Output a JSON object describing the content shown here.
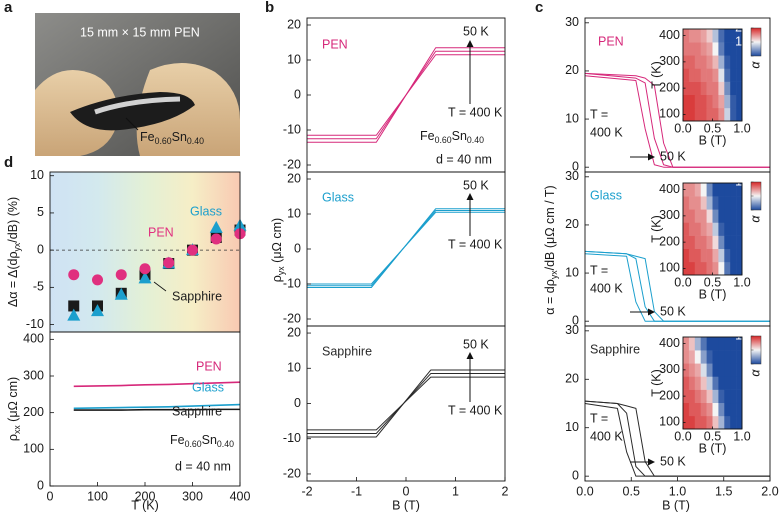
{
  "photo": {
    "label": "a",
    "caption": "15 mm × 15 mm PEN",
    "sample": [
      "Fe",
      "0.60",
      "Sn",
      "0.40"
    ]
  },
  "chart_data": [
    {
      "type": "scatter",
      "panel": "d",
      "ylabel": [
        "Δα = Δ(dρ",
        "yx",
        "/dB) (%)"
      ],
      "xlim": [
        0,
        400
      ],
      "ylim": [
        -11,
        10.5
      ],
      "yticks": [
        -10,
        -5,
        0,
        5,
        10
      ],
      "background": [
        "#cfe2f4",
        "#d3e9ee",
        "#e3f0d6",
        "#f6eec6",
        "#f8c9b2"
      ],
      "x": [
        50,
        100,
        150,
        200,
        250,
        300,
        350,
        400
      ],
      "series": [
        {
          "name": "Sapphire",
          "color": "#1a1a1a",
          "marker": "square",
          "values": [
            -7.5,
            -7.5,
            -5.8,
            -3.3,
            -1.8,
            0,
            1.7,
            2.7
          ]
        },
        {
          "name": "Glass",
          "color": "#1b9fcd",
          "marker": "triangle",
          "values": [
            -8.8,
            -8.2,
            -6,
            -3.8,
            -1.8,
            0,
            3,
            3.3
          ]
        },
        {
          "name": "PEN",
          "color": "#e0307f",
          "marker": "circle",
          "values": [
            -3.3,
            -4,
            -3.3,
            -2.5,
            -1.7,
            0,
            1.5,
            2.2
          ]
        }
      ]
    },
    {
      "type": "line",
      "xlim": [
        0,
        400
      ],
      "xticks": [
        0,
        100,
        200,
        300,
        400
      ],
      "xlabel": "T (K)",
      "ylim": [
        0,
        420
      ],
      "yticks": [
        0,
        100,
        200,
        300,
        400
      ],
      "ylabel": [
        "ρ",
        "xx",
        " (μΩ cm)"
      ],
      "x": [
        50,
        100,
        150,
        200,
        250,
        300,
        350,
        400
      ],
      "series": [
        {
          "name": "PEN",
          "color": "#d6287a",
          "values": [
            272,
            273,
            274,
            276,
            277,
            279,
            281,
            283
          ]
        },
        {
          "name": "Glass",
          "color": "#1b9fcd",
          "values": [
            212,
            213,
            214,
            215,
            216,
            218,
            220,
            222
          ]
        },
        {
          "name": "Sapphire",
          "color": "#1a1a1a",
          "values": [
            207,
            207,
            207,
            208,
            208,
            208,
            209,
            209
          ]
        }
      ],
      "sample": [
        "Fe",
        "0.60",
        "Sn",
        "0.40"
      ],
      "thickness": "d = 40 nm"
    },
    {
      "type": "line",
      "panel": "b",
      "sample_name": "PEN",
      "high_label": "50 K",
      "low_label": "T = 400 K",
      "sample": [
        "Fe",
        "0.60",
        "Sn",
        "0.40"
      ],
      "thickness": "d = 40 nm",
      "xlim": [
        -2,
        2
      ],
      "ylim": [
        -22,
        22
      ],
      "yticks": [
        -20,
        -10,
        0,
        10,
        20
      ],
      "x": [
        -2,
        -0.6,
        0.6,
        2
      ],
      "series": [
        {
          "color": "#d6287a",
          "values": [
            -13.5,
            -13.5,
            13.5,
            13.5
          ]
        },
        {
          "color": "#d6287a",
          "values": [
            -12.5,
            -12.5,
            12.5,
            12.5
          ]
        },
        {
          "color": "#d6287a",
          "values": [
            -11.5,
            -11.5,
            11.5,
            11.5
          ]
        }
      ]
    },
    {
      "type": "line",
      "sample_name": "Glass",
      "high_label": "50 K",
      "low_label": "T = 400 K",
      "ylabel": [
        "ρ",
        "yx",
        " (μΩ cm)"
      ],
      "xlim": [
        -2,
        2
      ],
      "ylim": [
        -22,
        22
      ],
      "yticks": [
        -20,
        -10,
        0,
        10,
        20
      ],
      "x": [
        -2,
        -0.7,
        0.6,
        2
      ],
      "series": [
        {
          "color": "#1b9fcd",
          "values": [
            -11,
            -11,
            11.5,
            11.5
          ]
        },
        {
          "color": "#1b9fcd",
          "values": [
            -10.5,
            -10.5,
            11,
            11
          ]
        },
        {
          "color": "#1b9fcd",
          "values": [
            -10,
            -10,
            10.5,
            10.5
          ]
        }
      ]
    },
    {
      "type": "line",
      "sample_name": "Sapphire",
      "high_label": "50 K",
      "low_label": "T = 400 K",
      "xlim": [
        -2,
        2
      ],
      "xticks": [
        -2,
        -1,
        0,
        1,
        2
      ],
      "xlabel": "B (T)",
      "ylim": [
        -22,
        22
      ],
      "yticks": [
        -20,
        -10,
        0,
        10,
        20
      ],
      "x": [
        -2,
        -0.6,
        0.5,
        2
      ],
      "series": [
        {
          "color": "#2a2a2a",
          "values": [
            -9.5,
            -9.5,
            9.5,
            9.5
          ]
        },
        {
          "color": "#2a2a2a",
          "values": [
            -8.5,
            -8.5,
            8.5,
            8.5
          ]
        },
        {
          "color": "#2a2a2a",
          "values": [
            -7.5,
            -7.5,
            7.5,
            7.5
          ]
        }
      ]
    },
    {
      "type": "line",
      "panel": "c",
      "sample_name": "PEN",
      "high_label": "50 K",
      "low_label": [
        "T =",
        "400 K"
      ],
      "xlim": [
        0,
        2
      ],
      "ylim": [
        -1,
        31
      ],
      "yticks": [
        0,
        10,
        20,
        30
      ],
      "x": [
        0,
        0.55,
        0.65,
        0.75,
        0.85,
        0.95,
        2
      ],
      "series": [
        {
          "color": "#d6287a",
          "values": [
            19.5,
            19,
            18.5,
            17,
            5,
            0,
            0
          ]
        },
        {
          "color": "#d6287a",
          "values": [
            19.5,
            18.5,
            17.5,
            6,
            0.5,
            0,
            0
          ]
        },
        {
          "color": "#d6287a",
          "values": [
            19,
            18,
            8,
            0.5,
            0,
            0,
            0
          ]
        }
      ]
    },
    {
      "type": "line",
      "sample_name": "Glass",
      "high_label": "50 K",
      "low_label": [
        "T =",
        "400 K"
      ],
      "ylabel": [
        "α = dρ",
        "yx",
        "/dB  (μΩ cm / T)"
      ],
      "xlim": [
        0,
        2
      ],
      "ylim": [
        -1,
        31
      ],
      "yticks": [
        0,
        10,
        20,
        30
      ],
      "x": [
        0,
        0.45,
        0.55,
        0.65,
        0.75,
        0.85,
        2
      ],
      "series": [
        {
          "color": "#1b9fcd",
          "values": [
            14.5,
            14,
            13.5,
            13,
            2,
            0,
            0
          ]
        },
        {
          "color": "#1b9fcd",
          "values": [
            14.5,
            14,
            13,
            3,
            0,
            0,
            0
          ]
        },
        {
          "color": "#1b9fcd",
          "values": [
            14,
            13.5,
            4,
            0,
            0,
            0,
            0
          ]
        }
      ]
    },
    {
      "type": "line",
      "sample_name": "Sapphire",
      "high_label": "50 K",
      "low_label": [
        "T =",
        "400 K"
      ],
      "xlim": [
        0,
        2
      ],
      "xticks": [
        {
          "value": 0,
          "label": "0.0"
        },
        0.5,
        {
          "value": 1,
          "label": "1.0"
        },
        1.5,
        {
          "value": 2,
          "label": "2.0"
        }
      ],
      "xlabel": "B (T)",
      "ylim": [
        -1,
        31
      ],
      "yticks": [
        0,
        10,
        20,
        30
      ],
      "x": [
        0,
        0.35,
        0.45,
        0.55,
        0.65,
        0.75,
        2
      ],
      "series": [
        {
          "color": "#2a2a2a",
          "values": [
            15.5,
            15,
            14.5,
            14,
            3,
            0,
            0
          ]
        },
        {
          "color": "#2a2a2a",
          "values": [
            15.5,
            15,
            13,
            2,
            0,
            0,
            0
          ]
        },
        {
          "color": "#2a2a2a",
          "values": [
            15,
            14,
            5,
            0,
            0,
            0,
            0
          ]
        }
      ]
    },
    {
      "type": "heatmap",
      "xlabel": "B (T)",
      "ylabel": "T (K)",
      "zlabel": "α",
      "xlim": [
        0,
        1
      ],
      "xticks": [
        {
          "value": 0,
          "label": "0.0"
        },
        0.5,
        {
          "value": 1,
          "label": "1.0"
        }
      ],
      "ylim": [
        75,
        425
      ],
      "yticks": [
        100,
        200,
        300,
        400
      ],
      "zlim": [
        0,
        20
      ],
      "zticks": [
        0,
        10,
        20
      ],
      "colormap": [
        "#1d4a9e",
        "#f4f4f4",
        "#d62728"
      ],
      "x": [
        0.05,
        0.15,
        0.25,
        0.35,
        0.45,
        0.55,
        0.65,
        0.75,
        0.85,
        0.95
      ],
      "y": [
        100,
        150,
        200,
        250,
        300,
        350,
        400
      ],
      "values": [
        [
          19,
          19,
          18,
          18,
          17,
          17,
          15,
          8,
          1,
          0
        ],
        [
          19,
          19,
          18,
          18,
          17,
          16,
          14,
          6,
          1,
          0
        ],
        [
          18,
          18,
          18,
          17,
          16,
          16,
          12,
          4,
          0,
          0
        ],
        [
          18,
          17,
          17,
          16,
          16,
          15,
          9,
          2,
          0,
          0
        ],
        [
          17,
          17,
          16,
          16,
          15,
          13,
          6,
          1,
          0,
          0
        ],
        [
          16,
          16,
          16,
          15,
          14,
          10,
          3,
          0,
          0,
          0
        ],
        [
          16,
          15,
          15,
          14,
          12,
          7,
          2,
          0,
          0,
          0
        ]
      ]
    },
    {
      "type": "heatmap",
      "xlabel": "B (T)",
      "ylabel": "T (K)",
      "zlabel": "α",
      "xlim": [
        0,
        1
      ],
      "xticks": [
        {
          "value": 0,
          "label": "0.0"
        },
        0.5,
        {
          "value": 1,
          "label": "1.0"
        }
      ],
      "ylim": [
        75,
        425
      ],
      "yticks": [
        100,
        200,
        300,
        400
      ],
      "zlim": [
        0,
        16
      ],
      "zticks": [
        0,
        8,
        16
      ],
      "colormap": [
        "#1d4a9e",
        "#f4f4f4",
        "#d62728"
      ],
      "x": [
        0.05,
        0.15,
        0.25,
        0.35,
        0.45,
        0.55,
        0.65,
        0.75,
        0.85,
        0.95
      ],
      "y": [
        100,
        150,
        200,
        250,
        300,
        350,
        400
      ],
      "values": [
        [
          15,
          15,
          14,
          14,
          13,
          12,
          8,
          2,
          0,
          0
        ],
        [
          15,
          14,
          14,
          13,
          13,
          11,
          6,
          1,
          0,
          0
        ],
        [
          14,
          14,
          13,
          13,
          12,
          9,
          3,
          0,
          0,
          0
        ],
        [
          14,
          13,
          13,
          12,
          11,
          6,
          1,
          0,
          0,
          0
        ],
        [
          13,
          13,
          12,
          12,
          9,
          3,
          0,
          0,
          0,
          0
        ],
        [
          13,
          12,
          12,
          10,
          5,
          1,
          0,
          0,
          0,
          0
        ],
        [
          12,
          12,
          11,
          8,
          3,
          0,
          0,
          0,
          0,
          0
        ]
      ]
    },
    {
      "type": "heatmap",
      "xlabel": "B (T)",
      "ylabel": "T (K)",
      "zlabel": "α",
      "xlim": [
        0,
        1
      ],
      "xticks": [
        {
          "value": 0,
          "label": "0.0"
        },
        0.5,
        {
          "value": 1,
          "label": "1.0"
        }
      ],
      "ylim": [
        75,
        425
      ],
      "yticks": [
        100,
        200,
        300,
        400
      ],
      "zlim": [
        0,
        16
      ],
      "zticks": [
        0,
        8,
        16
      ],
      "colormap": [
        "#1d4a9e",
        "#f4f4f4",
        "#d62728"
      ],
      "x": [
        0.05,
        0.15,
        0.25,
        0.35,
        0.45,
        0.55,
        0.65,
        0.75,
        0.85,
        0.95
      ],
      "y": [
        100,
        150,
        200,
        250,
        300,
        350,
        400
      ],
      "values": [
        [
          15,
          15,
          14,
          14,
          13,
          10,
          5,
          1,
          0,
          0
        ],
        [
          15,
          14,
          14,
          13,
          12,
          8,
          3,
          0,
          0,
          0
        ],
        [
          14,
          14,
          13,
          12,
          10,
          5,
          1,
          0,
          0,
          0
        ],
        [
          14,
          13,
          12,
          10,
          6,
          2,
          0,
          0,
          0,
          0
        ],
        [
          13,
          12,
          11,
          7,
          3,
          0,
          0,
          0,
          0,
          0
        ],
        [
          12,
          11,
          8,
          4,
          1,
          0,
          0,
          0,
          0,
          0
        ],
        [
          12,
          10,
          5,
          2,
          0,
          0,
          0,
          0,
          0,
          0
        ]
      ]
    }
  ]
}
